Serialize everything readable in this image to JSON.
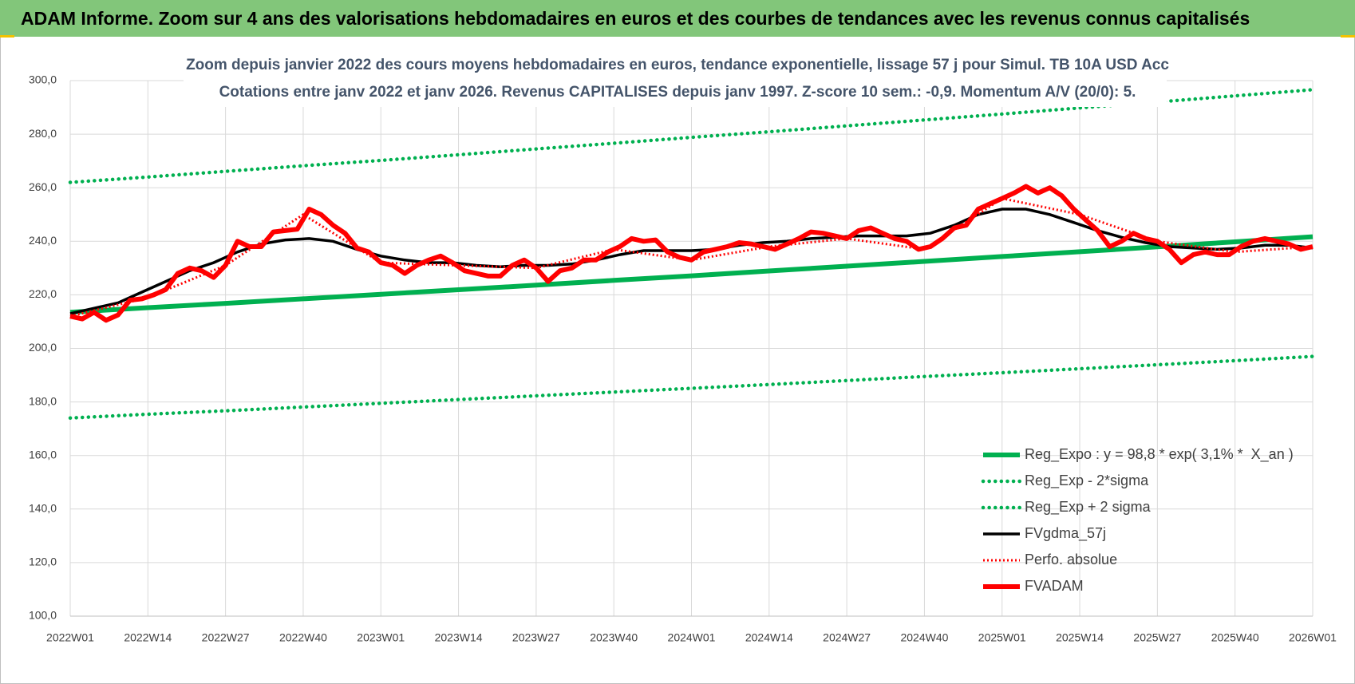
{
  "chart_data": {
    "type": "line",
    "header": "ADAM Informe. Zoom sur 4 ans des valorisations hebdomadaires en euros et des courbes de tendances avec les revenus connus capitalisés",
    "title": "Zoom depuis janvier 2022 des cours moyens hebdomadaires en euros, tendance exponentielle, lissage 57 j pour Simul. TB 10A USD Acc",
    "subtitle": "Cotations entre janv 2022 et janv 2026. Revenus CAPITALISES depuis janv 1997. Z-score 10 sem.: -0,9. Momentum A/V (20/0): 5.",
    "xlim": [
      0,
      208
    ],
    "xticks": [
      {
        "value": 0,
        "label": "2022W01"
      },
      {
        "value": 13,
        "label": "2022W14"
      },
      {
        "value": 26,
        "label": "2022W27"
      },
      {
        "value": 39,
        "label": "2022W40"
      },
      {
        "value": 52,
        "label": "2023W01"
      },
      {
        "value": 65,
        "label": "2023W14"
      },
      {
        "value": 78,
        "label": "2023W27"
      },
      {
        "value": 91,
        "label": "2023W40"
      },
      {
        "value": 104,
        "label": "2024W01"
      },
      {
        "value": 117,
        "label": "2024W14"
      },
      {
        "value": 130,
        "label": "2024W27"
      },
      {
        "value": 143,
        "label": "2024W40"
      },
      {
        "value": 156,
        "label": "2025W01"
      },
      {
        "value": 169,
        "label": "2025W14"
      },
      {
        "value": 182,
        "label": "2025W27"
      },
      {
        "value": 195,
        "label": "2025W40"
      },
      {
        "value": 208,
        "label": "2026W01"
      }
    ],
    "ylim": [
      100,
      300
    ],
    "yticks": [
      {
        "value": 100,
        "label": "100,0"
      },
      {
        "value": 120,
        "label": "120,0"
      },
      {
        "value": 140,
        "label": "140,0"
      },
      {
        "value": 160,
        "label": "160,0"
      },
      {
        "value": 180,
        "label": "180,0"
      },
      {
        "value": 200,
        "label": "200,0"
      },
      {
        "value": 220,
        "label": "220,0"
      },
      {
        "value": 240,
        "label": "240,0"
      },
      {
        "value": 260,
        "label": "260,0"
      },
      {
        "value": 280,
        "label": "280,0"
      },
      {
        "value": 300,
        "label": "300,0"
      }
    ],
    "grid": true,
    "legend": "right",
    "series": [
      {
        "name": "Reg_Expo : y = 98,8 * exp( 3,1% *  X_an )",
        "color": "#00b050",
        "style": "solid",
        "x": [
          0,
          13,
          26,
          39,
          52,
          65,
          78,
          91,
          104,
          117,
          130,
          143,
          156,
          169,
          182,
          195,
          208
        ],
        "values": [
          213.5,
          215.2,
          216.8,
          218.5,
          220.2,
          221.9,
          223.6,
          225.4,
          227.1,
          228.9,
          230.7,
          232.5,
          234.3,
          236.1,
          237.9,
          239.8,
          241.7
        ]
      },
      {
        "name": "Reg_Exp - 2*sigma",
        "color": "#00b050",
        "style": "dotted",
        "x": [
          0,
          13,
          26,
          39,
          52,
          65,
          78,
          91,
          104,
          117,
          130,
          143,
          156,
          169,
          182,
          195,
          208
        ],
        "values": [
          174,
          175.4,
          176.7,
          178.1,
          179.5,
          180.9,
          182.3,
          183.7,
          185.1,
          186.5,
          188.0,
          189.5,
          190.9,
          192.4,
          193.9,
          195.4,
          197.0
        ]
      },
      {
        "name": "Reg_Exp + 2 sigma",
        "color": "#00b050",
        "style": "dotted",
        "x": [
          0,
          13,
          26,
          39,
          52,
          65,
          78,
          91,
          104,
          117,
          130,
          143,
          156,
          169,
          182,
          195,
          208
        ],
        "values": [
          262,
          264.0,
          266.1,
          268.2,
          270.2,
          272.3,
          274.5,
          276.6,
          278.8,
          280.9,
          283.1,
          285.3,
          287.5,
          289.8,
          292.0,
          294.3,
          296.6
        ]
      },
      {
        "name": "FVgdma_57j",
        "color": "#000000",
        "style": "solid",
        "x": [
          0,
          4,
          8,
          12,
          16,
          20,
          24,
          28,
          32,
          36,
          40,
          44,
          48,
          52,
          56,
          60,
          64,
          68,
          72,
          76,
          80,
          84,
          88,
          92,
          96,
          100,
          104,
          108,
          112,
          116,
          120,
          124,
          128,
          132,
          136,
          140,
          144,
          148,
          152,
          156,
          160,
          164,
          168,
          172,
          176,
          180,
          184,
          188,
          192,
          196,
          200,
          204,
          208
        ],
        "values": [
          213,
          215,
          217,
          221,
          225,
          229,
          232,
          236,
          239,
          240.5,
          241,
          240,
          237,
          234.5,
          233,
          232,
          232,
          231,
          230.5,
          231,
          231,
          231.5,
          233,
          235,
          236.5,
          236.5,
          236.5,
          237,
          238.5,
          239.5,
          240,
          241,
          241.5,
          242,
          242,
          242,
          243,
          246,
          250,
          252,
          252,
          250,
          247,
          244,
          241.5,
          239.5,
          238,
          237.5,
          237,
          237.5,
          238.5,
          238.5,
          237.5
        ]
      },
      {
        "name": "Perfo. absolue",
        "color": "#ff0000",
        "style": "dotted",
        "x": [
          0,
          13,
          26,
          39,
          52,
          65,
          78,
          91,
          104,
          117,
          130,
          143,
          156,
          169,
          182,
          195,
          208
        ],
        "values": [
          212,
          219,
          231,
          250,
          232,
          231,
          230,
          237,
          233,
          238,
          241,
          237,
          256,
          250,
          240,
          236,
          238
        ]
      },
      {
        "name": "FVADAM",
        "color": "#ff0000",
        "style": "thick",
        "x": [
          0,
          2,
          4,
          6,
          8,
          10,
          12,
          14,
          16,
          18,
          20,
          22,
          24,
          26,
          28,
          30,
          32,
          34,
          36,
          38,
          40,
          42,
          44,
          46,
          48,
          50,
          52,
          54,
          56,
          58,
          60,
          62,
          64,
          66,
          68,
          70,
          72,
          74,
          76,
          78,
          80,
          82,
          84,
          86,
          88,
          90,
          92,
          94,
          96,
          98,
          100,
          102,
          104,
          106,
          108,
          110,
          112,
          114,
          116,
          118,
          120,
          122,
          124,
          126,
          128,
          130,
          132,
          134,
          136,
          138,
          140,
          142,
          144,
          146,
          148,
          150,
          152,
          154,
          156,
          158,
          160,
          162,
          164,
          166,
          168,
          170,
          172,
          174,
          176,
          178,
          180,
          182,
          184,
          186,
          188,
          190,
          192,
          194,
          196,
          198,
          200,
          202,
          204,
          206,
          208
        ],
        "values": [
          212,
          211,
          213.5,
          210.5,
          212.5,
          218,
          218.5,
          220,
          222,
          228,
          230,
          229,
          226.5,
          231,
          240,
          238,
          238,
          243.5,
          244,
          244.5,
          252,
          250,
          246,
          243,
          237.5,
          236,
          232,
          231,
          228,
          231,
          233,
          234.5,
          232,
          229,
          228,
          227,
          227,
          231,
          233,
          230,
          225,
          229,
          230,
          233,
          233,
          236,
          238,
          241,
          240,
          240.5,
          236,
          234,
          233,
          236,
          237,
          238,
          239.5,
          239,
          238,
          237,
          239,
          241,
          243.5,
          243,
          242,
          241,
          244,
          245,
          243,
          241,
          240,
          237,
          238,
          241,
          245,
          246,
          252,
          254,
          256,
          258,
          260.5,
          258,
          260,
          257,
          252,
          248,
          244,
          238,
          240,
          243,
          241,
          240,
          237,
          232,
          235,
          236,
          235,
          235,
          238,
          240,
          241,
          240,
          239,
          237,
          238
        ]
      }
    ]
  }
}
